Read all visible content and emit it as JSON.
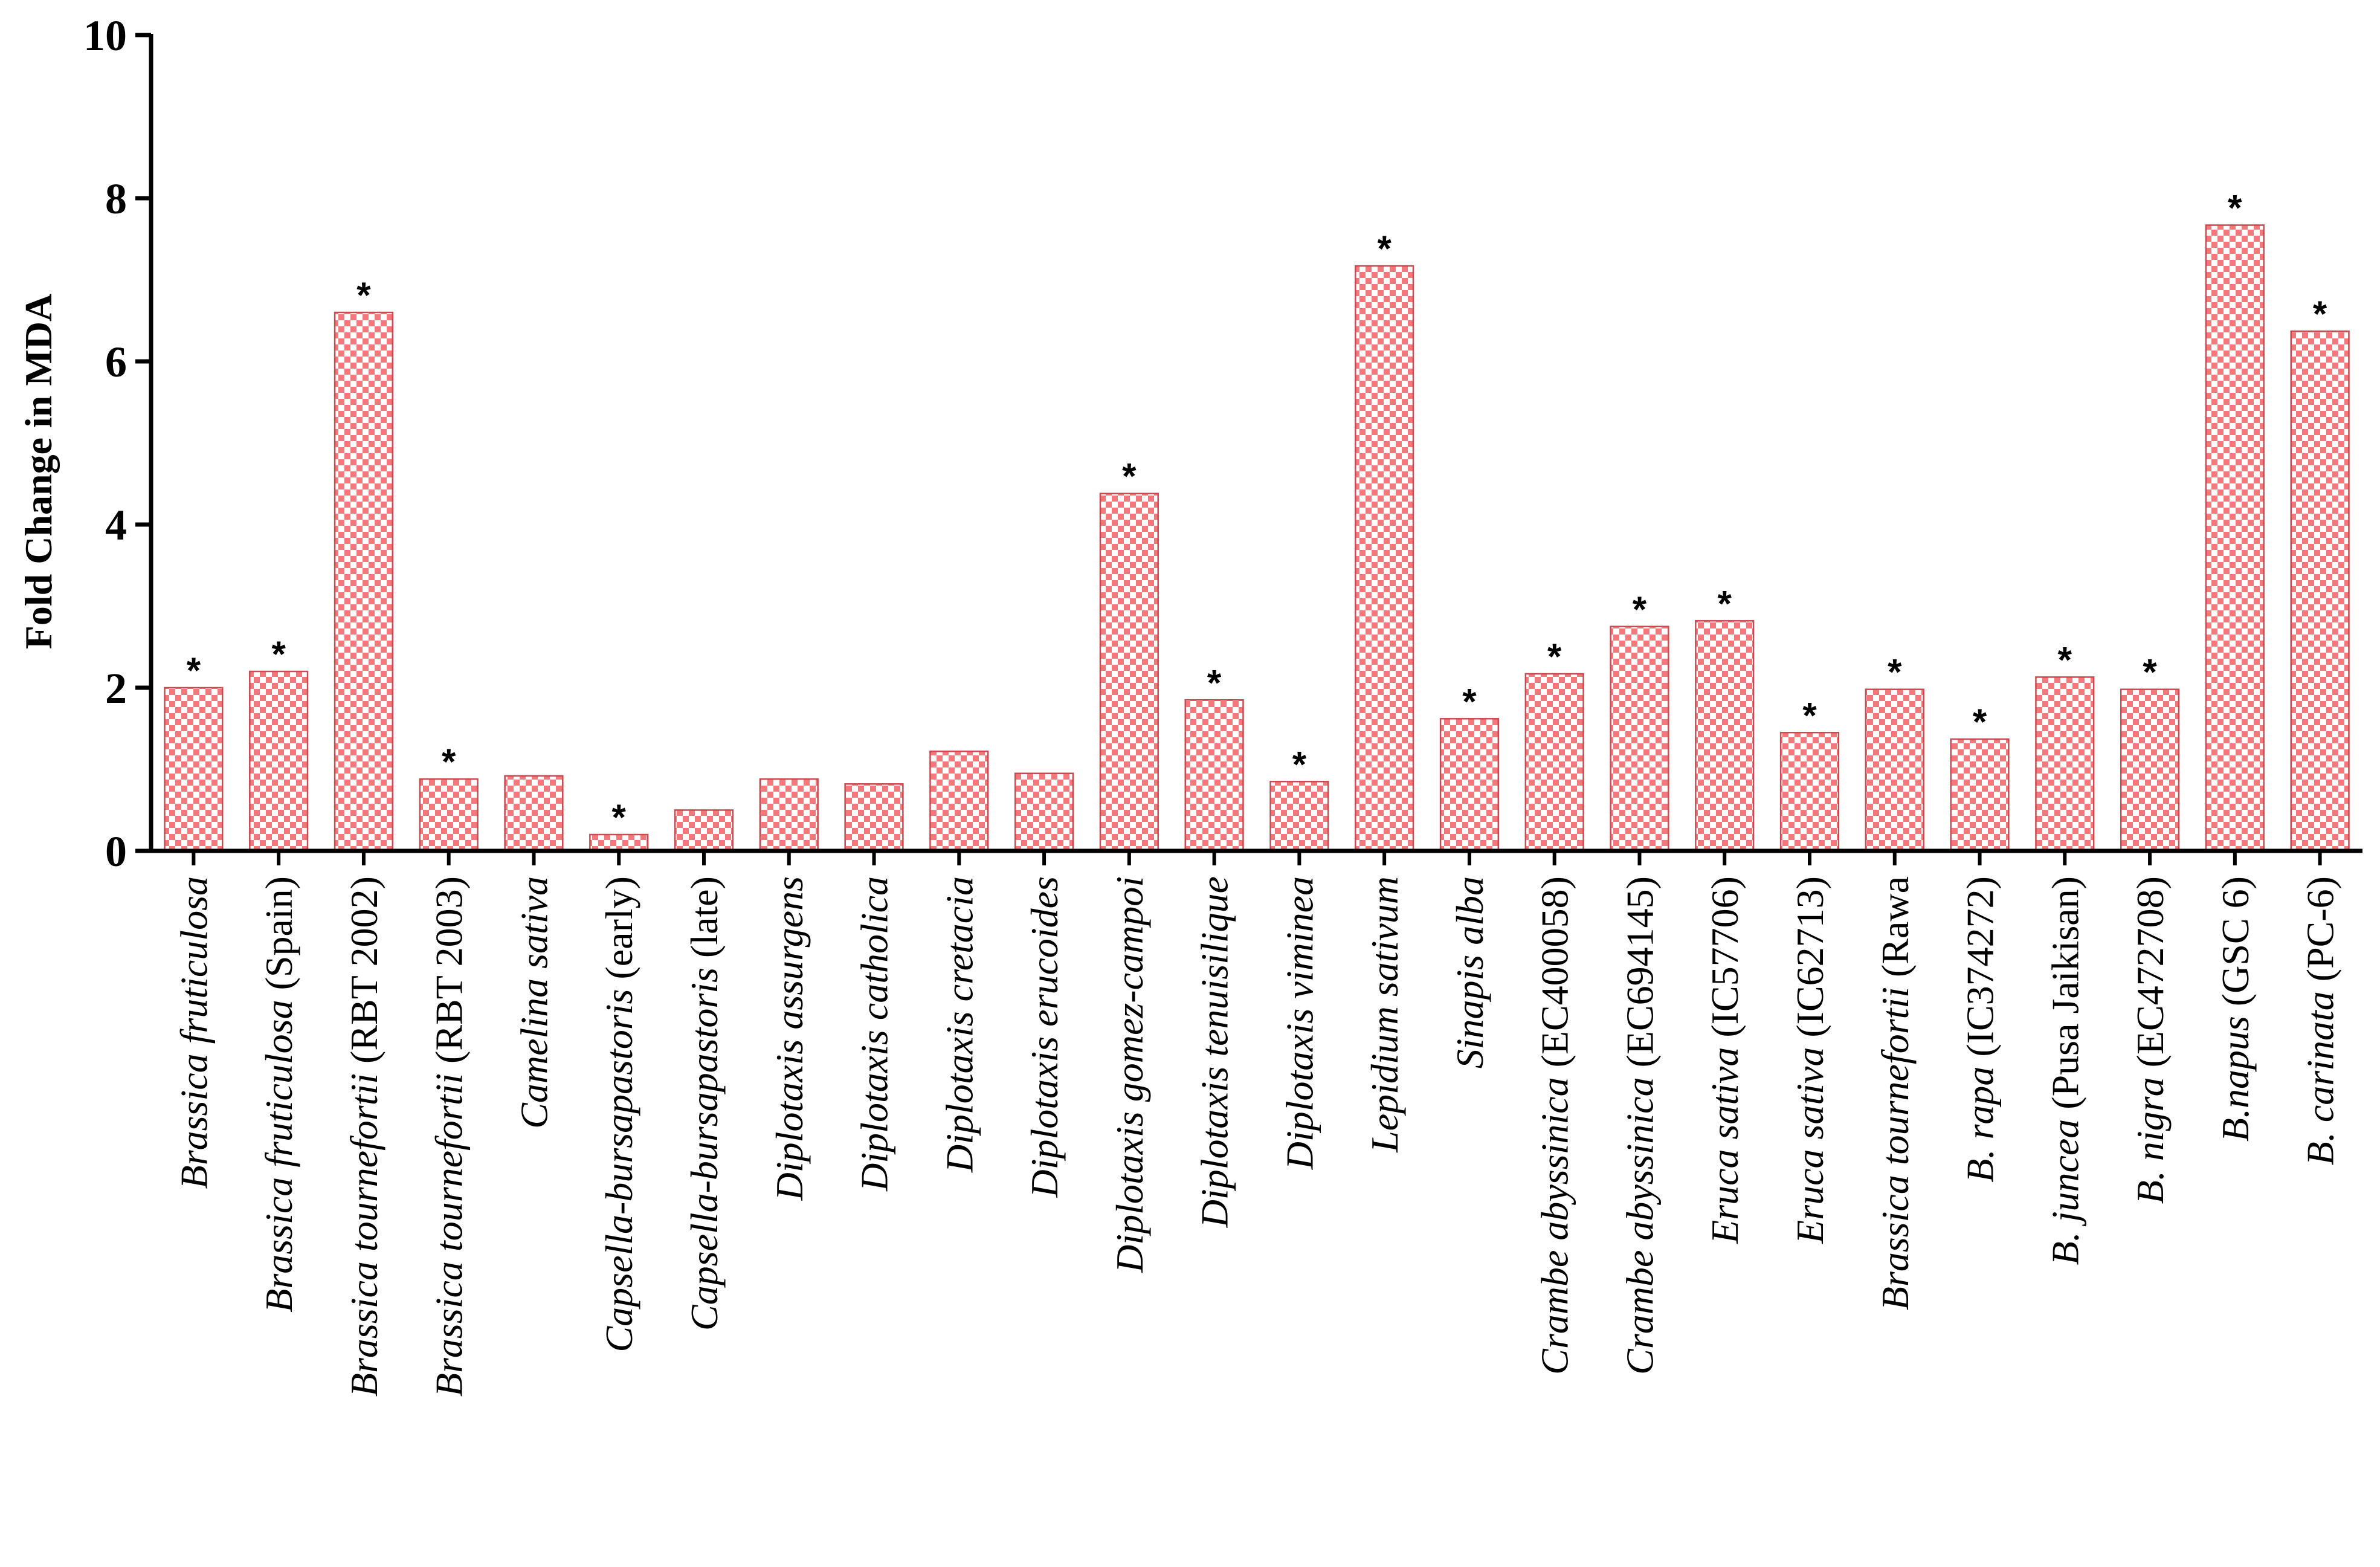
{
  "chart_data": {
    "type": "bar",
    "title": "",
    "xlabel": "",
    "ylabel": "Fold Change in MDA",
    "ylim": [
      0,
      10
    ],
    "yticks": [
      "0",
      "2",
      "4",
      "6",
      "8",
      "10"
    ],
    "grid": false,
    "legend": "none",
    "bar_color": "#f4777c",
    "bar_pattern": "checkerboard",
    "categories": [
      {
        "italic": "Brassica fruticulosa",
        "plain": ""
      },
      {
        "italic": "Brassica fruticulosa",
        "plain": " (Spain)"
      },
      {
        "italic": "Brassica tournefortii",
        "plain": " (RBT 2002)"
      },
      {
        "italic": "Brassica tournefortii",
        "plain": " (RBT 2003)"
      },
      {
        "italic": "Camelina sativa",
        "plain": ""
      },
      {
        "italic": "Capsella-bursapastoris",
        "plain": " (early)"
      },
      {
        "italic": "Capsella-bursapastoris",
        "plain": " (late)"
      },
      {
        "italic": "Diplotaxis assurgens",
        "plain": ""
      },
      {
        "italic": "Diplotaxis catholica",
        "plain": ""
      },
      {
        "italic": "Diplotaxis cretacia",
        "plain": ""
      },
      {
        "italic": "Diplotaxis erucoides",
        "plain": ""
      },
      {
        "italic": "Diplotaxis gomez-campoi",
        "plain": ""
      },
      {
        "italic": "Diplotaxis tenuisilique",
        "plain": ""
      },
      {
        "italic": "Diplotaxis viminea",
        "plain": ""
      },
      {
        "italic": "Lepidium sativum",
        "plain": ""
      },
      {
        "italic": "Sinapis alba",
        "plain": ""
      },
      {
        "italic": "Crambe abyssinica",
        "plain": " (EC400058)"
      },
      {
        "italic": "Crambe abyssinica",
        "plain": " (EC694145)"
      },
      {
        "italic": "Eruca sativa",
        "plain": " (IC57706)"
      },
      {
        "italic": "Eruca sativa",
        "plain": " (IC62713)"
      },
      {
        "italic": "Brassica tournefortii",
        "plain": " (Rawa"
      },
      {
        "italic": "B. rapa",
        "plain": " (IC374272)"
      },
      {
        "italic": "B. juncea",
        "plain": " (Pusa Jaikisan)"
      },
      {
        "italic": "B. nigra",
        "plain": " (EC472708)"
      },
      {
        "italic": "B.napus",
        "plain": " (GSC 6)"
      },
      {
        "italic": "B. carinata",
        "plain": " (PC-6)"
      }
    ],
    "values": [
      2.0,
      2.2,
      6.6,
      0.88,
      0.92,
      0.2,
      0.5,
      0.88,
      0.82,
      1.22,
      0.95,
      4.38,
      1.85,
      0.85,
      7.17,
      1.62,
      2.17,
      2.75,
      2.82,
      1.45,
      1.98,
      1.37,
      2.13,
      1.98,
      7.67,
      6.37
    ],
    "significance_marks": [
      "*",
      "*",
      "*",
      "*",
      "",
      "*",
      "",
      "",
      "",
      "",
      "",
      "*",
      "*",
      "*",
      "*",
      "*",
      "*",
      "*",
      "*",
      "*",
      "*",
      "*",
      "*",
      "*",
      "*",
      "*"
    ]
  }
}
